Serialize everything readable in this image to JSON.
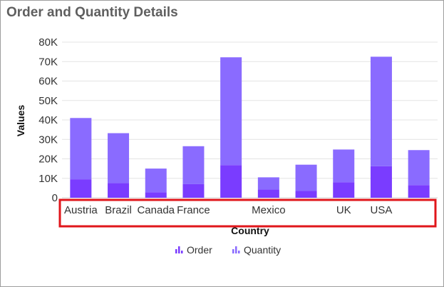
{
  "title": "Order and Quantity Details",
  "chart_data": {
    "type": "bar",
    "stacked": true,
    "categories": [
      "Austria",
      "Brazil",
      "Canada",
      "France",
      "",
      "Mexico",
      "",
      "UK",
      "USA",
      ""
    ],
    "series": [
      {
        "name": "Order",
        "color": "#7a3cff",
        "values": [
          9500,
          7500,
          2800,
          7000,
          16800,
          4200,
          3500,
          8000,
          16200,
          6500
        ]
      },
      {
        "name": "Quantity",
        "color": "#8a6bff",
        "values": [
          31500,
          25700,
          12200,
          19500,
          55400,
          6300,
          13500,
          16800,
          56300,
          18000
        ]
      }
    ],
    "xlabel": "Country",
    "ylabel": "Values",
    "ylim": [
      0,
      80000
    ],
    "yticks": [
      "0",
      "10K",
      "20K",
      "30K",
      "40K",
      "50K",
      "60K",
      "70K",
      "80K"
    ],
    "legend_position": "bottom",
    "highlight": {
      "target": "x-axis-labels",
      "color": "#e0161b"
    }
  }
}
